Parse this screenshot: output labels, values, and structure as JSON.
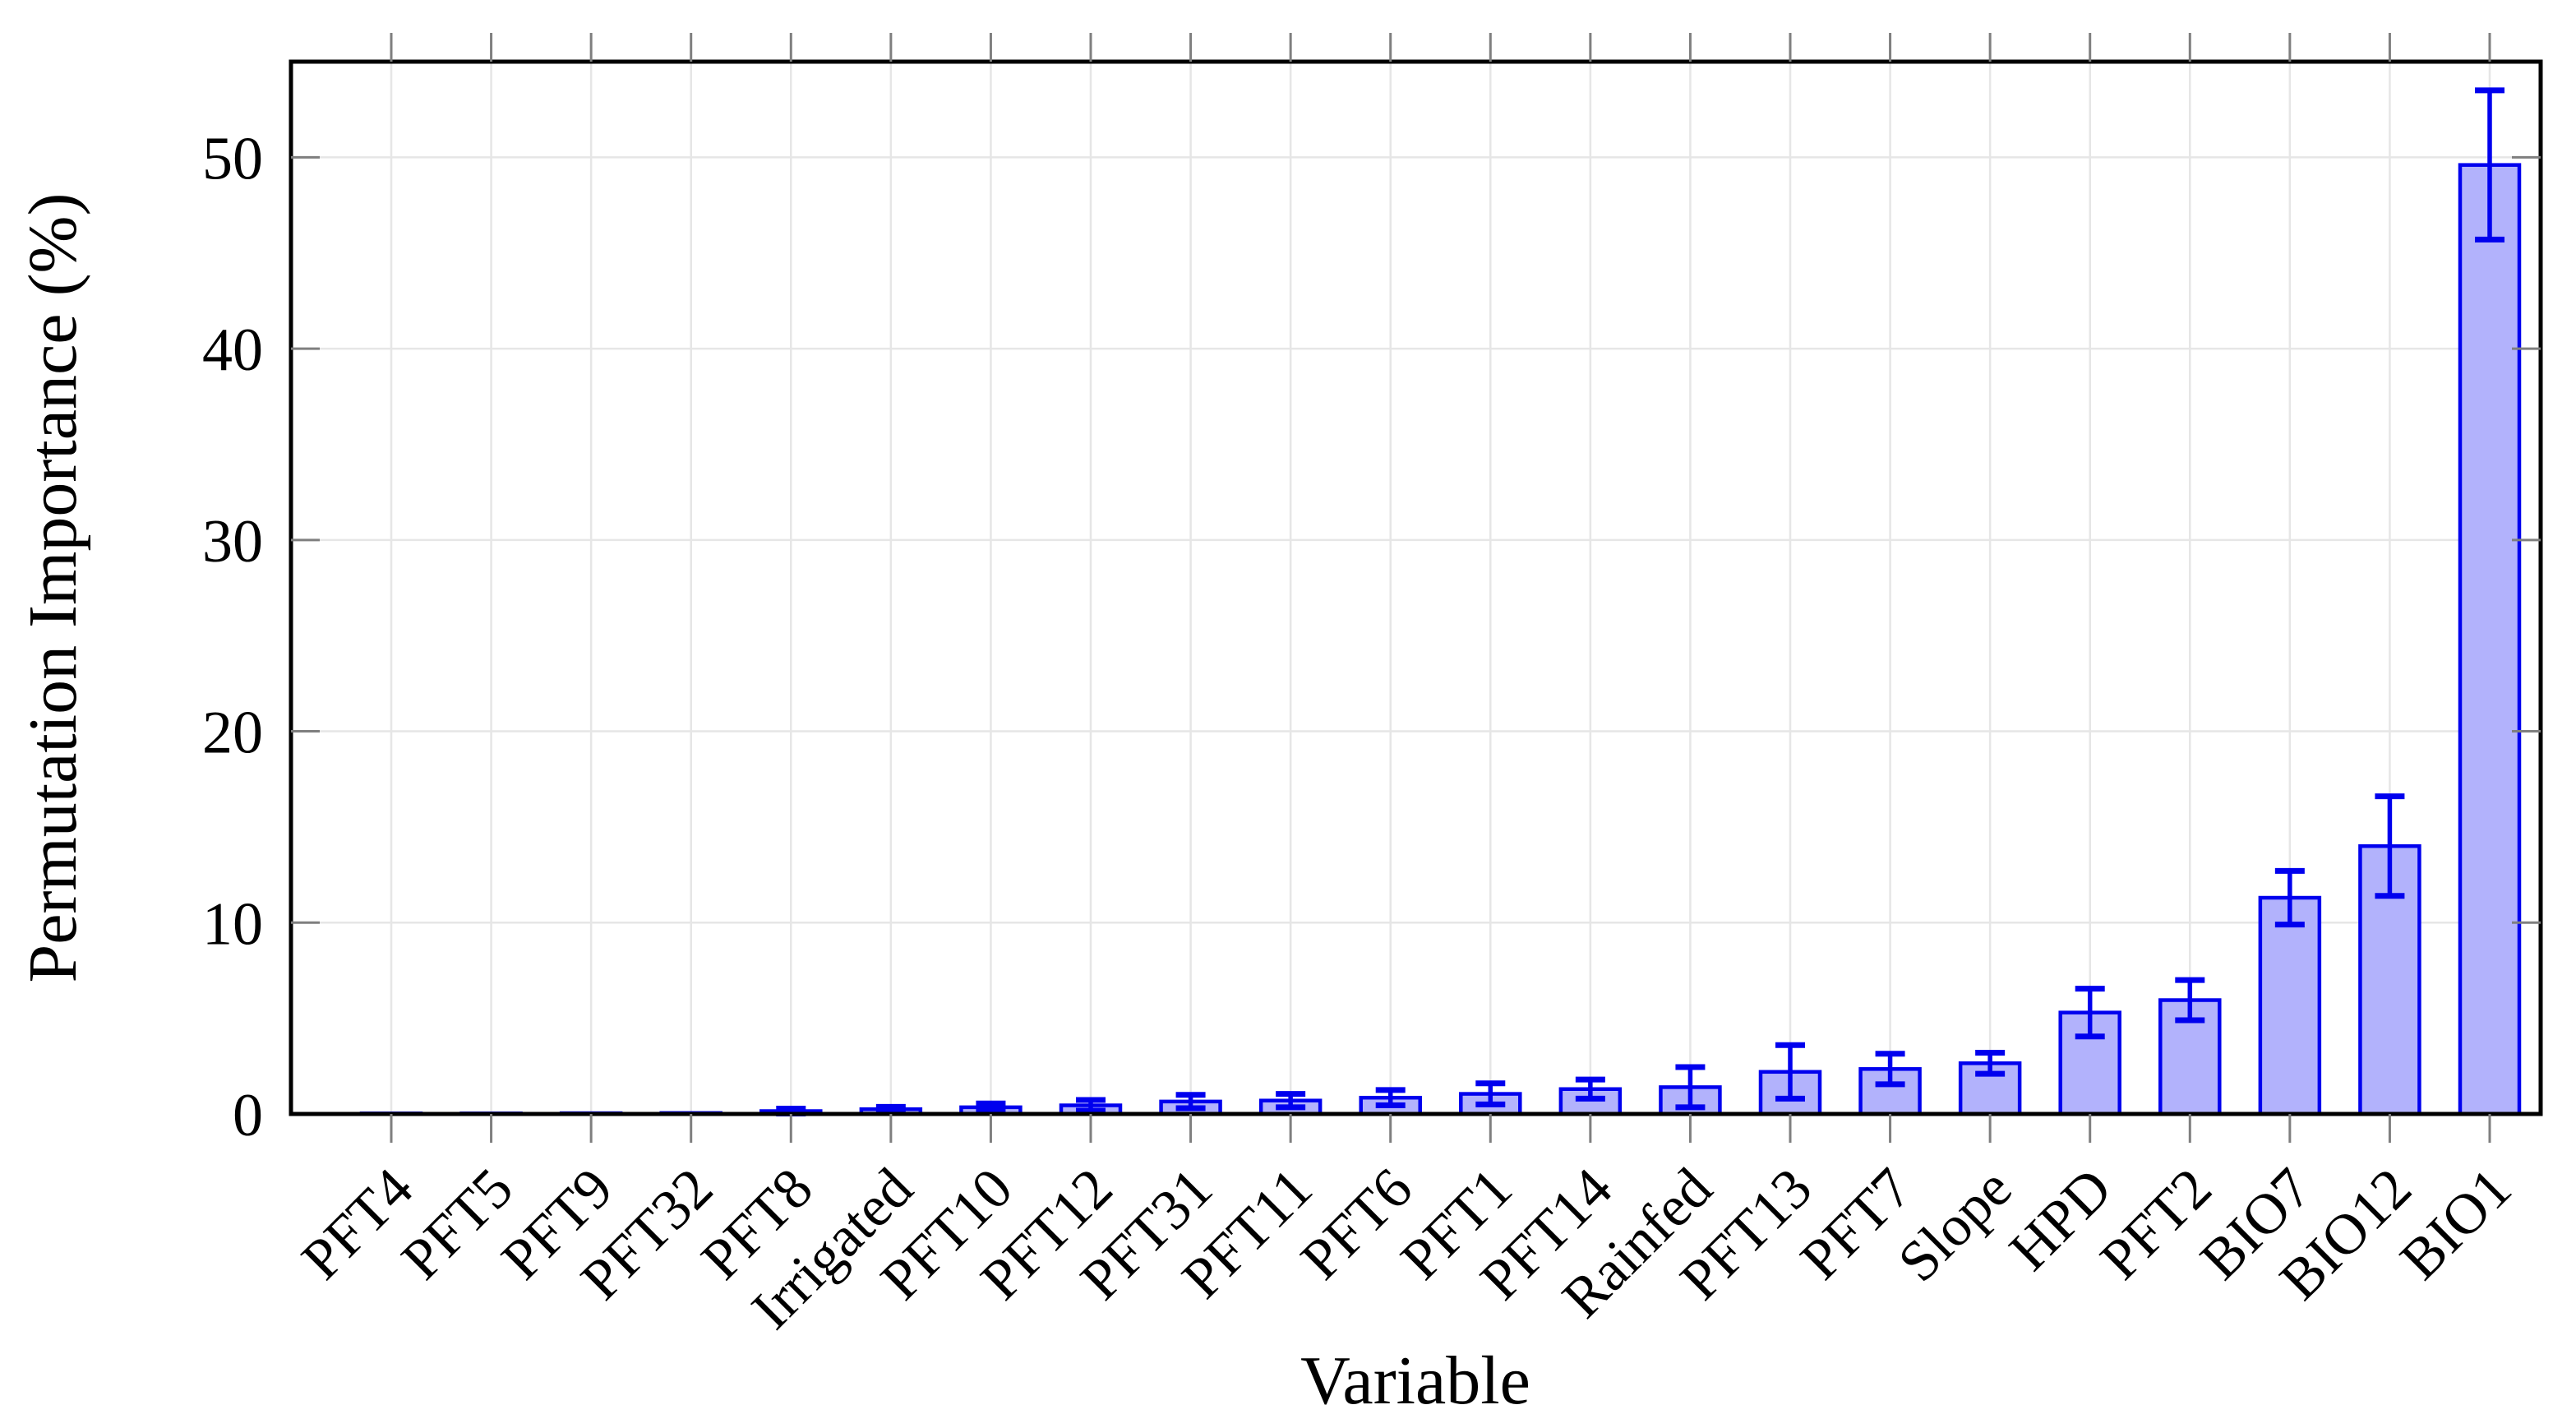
{
  "chart_data": {
    "type": "bar",
    "title": "",
    "xlabel": "Variable",
    "ylabel": "Permutation Importance (%)",
    "ylim": [
      0,
      55
    ],
    "yticks": [
      0,
      10,
      20,
      30,
      40,
      50
    ],
    "grid": true,
    "legend_position": "none",
    "orientation": "vertical",
    "error_bars": true,
    "bar_fill_color": "#b2b2fc",
    "bar_edge_color": "#0000ee",
    "error_bar_color": "#0000ee",
    "gridline_color": "#e6e6e6",
    "tick_color": "#7f7f7f",
    "frame_color": "#000000",
    "categories": [
      "PFT4",
      "PFT5",
      "PFT9",
      "PFT32",
      "PFT8",
      "Irrigated",
      "PFT10",
      "PFT12",
      "PFT31",
      "PFT11",
      "PFT6",
      "PFT1",
      "PFT14",
      "Rainfed",
      "PFT13",
      "PFT7",
      "Slope",
      "HPD",
      "PFT2",
      "BIO7",
      "BIO12",
      "BIO1"
    ],
    "values": [
      0.03,
      0.03,
      0.04,
      0.05,
      0.15,
      0.25,
      0.35,
      0.45,
      0.65,
      0.7,
      0.85,
      1.05,
      1.3,
      1.4,
      2.2,
      2.35,
      2.65,
      5.3,
      5.95,
      11.3,
      14.0,
      49.6
    ],
    "errors": [
      0.02,
      0.02,
      0.03,
      0.04,
      0.13,
      0.12,
      0.2,
      0.28,
      0.35,
      0.35,
      0.4,
      0.55,
      0.5,
      1.05,
      1.4,
      0.8,
      0.55,
      1.25,
      1.05,
      1.4,
      2.6,
      3.9
    ]
  }
}
